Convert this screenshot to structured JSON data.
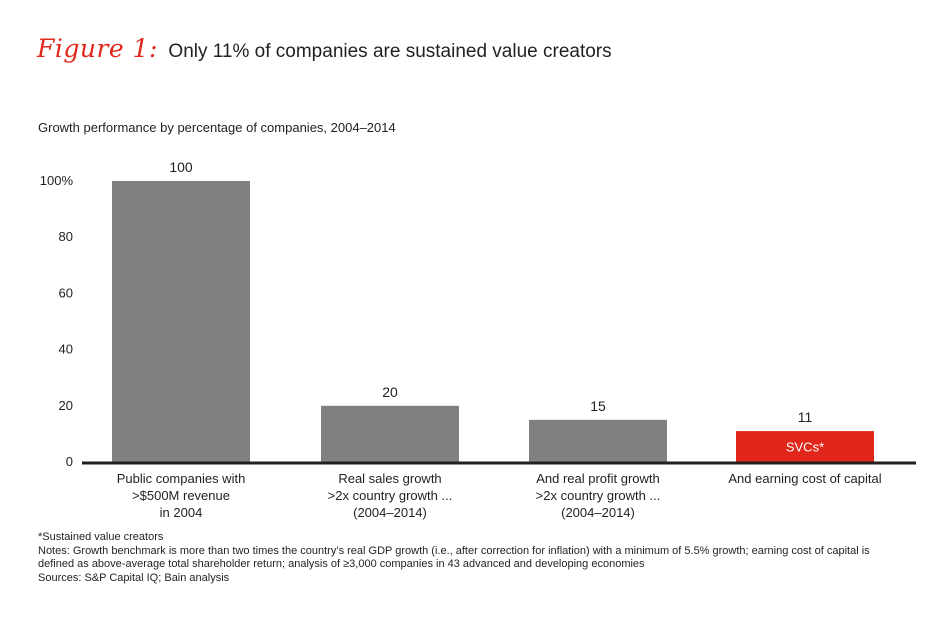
{
  "figure": {
    "label": "Figure 1:",
    "title": "Only 11% of companies are sustained value creators",
    "subtitle": "Growth performance by percentage of companies, 2004–2014"
  },
  "chart_data": {
    "type": "bar",
    "categories": [
      [
        "Public companies with",
        ">$500M revenue",
        "in 2004"
      ],
      [
        "Real sales growth",
        ">2x country growth ...",
        "(2004–2014)"
      ],
      [
        "And real profit growth",
        ">2x country growth ...",
        "(2004–2014)"
      ],
      [
        "And earning cost of capital"
      ]
    ],
    "values": [
      100,
      20,
      15,
      11
    ],
    "value_labels": [
      "100",
      "20",
      "15",
      "11"
    ],
    "bar_colors": [
      "#808083",
      "#808083",
      "#808083",
      "#e1261c"
    ],
    "bar_inner_labels": [
      "",
      "",
      "",
      "SVCs*"
    ],
    "ylim": [
      0,
      100
    ],
    "yticks": [
      0,
      20,
      40,
      60,
      80,
      100
    ],
    "ytick_labels": [
      "0",
      "20",
      "40",
      "60",
      "80",
      "100%"
    ],
    "title": "Only 11% of companies are sustained value creators",
    "xlabel": "",
    "ylabel": ""
  },
  "footnotes": {
    "svc": "*Sustained value creators",
    "notes_line1": "Notes: Growth benchmark is more than two times the country’s real GDP growth (i.e., after correction for inflation) with a minimum of 5.5% growth; earning cost of capital is",
    "notes_line2": "defined as above-average total shareholder return; analysis of ≥3,000 companies in 43 advanced and developing economies",
    "sources": "Sources: S&P Capital IQ; Bain analysis"
  }
}
